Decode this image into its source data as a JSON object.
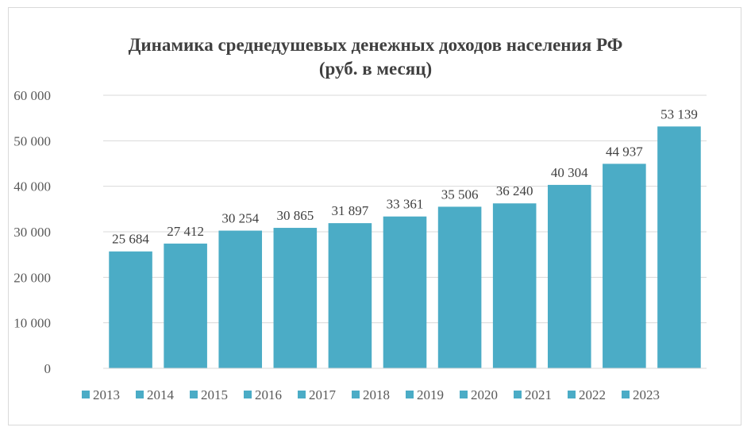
{
  "chart_data": {
    "type": "bar",
    "title": "Динамика среднедушевых денежных доходов населения РФ",
    "subtitle": "(руб. в месяц)",
    "categories": [
      "2013",
      "2014",
      "2015",
      "2016",
      "2017",
      "2018",
      "2019",
      "2020",
      "2021",
      "2022",
      "2023"
    ],
    "values": [
      25684,
      27412,
      30254,
      30865,
      31897,
      33361,
      35506,
      36240,
      40304,
      44937,
      53139
    ],
    "data_labels": [
      "25 684",
      "27 412",
      "30 254",
      "30 865",
      "31 897",
      "33 361",
      "35 506",
      "36 240",
      "40 304",
      "44 937",
      "53 139"
    ],
    "y_ticks": [
      0,
      10000,
      20000,
      30000,
      40000,
      50000,
      60000
    ],
    "y_tick_labels": [
      "0",
      "10 000",
      "20 000",
      "30 000",
      "40 000",
      "50 000",
      "60 000"
    ],
    "ylim": [
      0,
      60000
    ],
    "grid": true,
    "legend_position": "bottom",
    "xlabel": "",
    "ylabel": "",
    "colors": {
      "bar": "#4BACC6",
      "grid": "#d9d9d9",
      "axis": "#d9d9d9"
    }
  }
}
